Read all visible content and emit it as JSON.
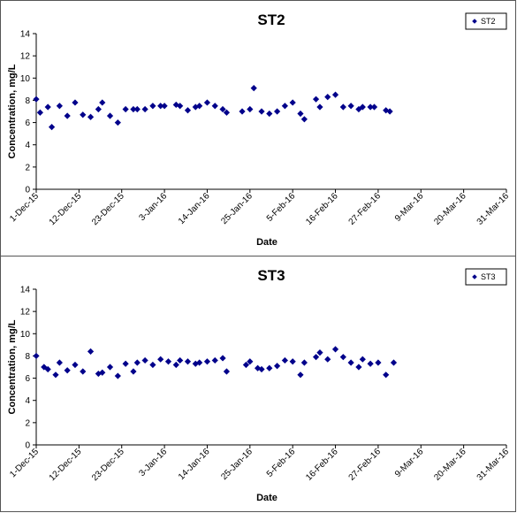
{
  "chart_data": [
    {
      "type": "scatter",
      "title": "ST2",
      "xlabel": "Date",
      "ylabel": "Concentration, mg/L",
      "ylim": [
        0,
        14
      ],
      "y_ticks": [
        0,
        2,
        4,
        6,
        8,
        10,
        12,
        14
      ],
      "xlim": [
        "2015-12-01",
        "2016-03-31"
      ],
      "x_tick_labels": [
        "1-Dec-15",
        "12-Dec-15",
        "23-Dec-15",
        "3-Jan-16",
        "14-Jan-16",
        "25-Jan-16",
        "5-Feb-16",
        "16-Feb-16",
        "27-Feb-16",
        "9-Mar-16",
        "20-Mar-16",
        "31-Mar-16"
      ],
      "x_tick_dates": [
        "2015-12-01",
        "2015-12-12",
        "2015-12-23",
        "2016-01-03",
        "2016-01-14",
        "2016-01-25",
        "2016-02-05",
        "2016-02-16",
        "2016-02-27",
        "2016-03-09",
        "2016-03-20",
        "2016-03-31"
      ],
      "grid": false,
      "legend_position": "top-right",
      "marker": "diamond",
      "color": "#00008B",
      "series": [
        {
          "name": "ST2",
          "points": [
            {
              "x": "2015-12-01",
              "y": 8.1
            },
            {
              "x": "2015-12-02",
              "y": 6.9
            },
            {
              "x": "2015-12-04",
              "y": 7.4
            },
            {
              "x": "2015-12-05",
              "y": 5.6
            },
            {
              "x": "2015-12-07",
              "y": 7.5
            },
            {
              "x": "2015-12-09",
              "y": 6.6
            },
            {
              "x": "2015-12-11",
              "y": 7.8
            },
            {
              "x": "2015-12-13",
              "y": 6.7
            },
            {
              "x": "2015-12-15",
              "y": 6.5
            },
            {
              "x": "2015-12-17",
              "y": 7.2
            },
            {
              "x": "2015-12-18",
              "y": 7.8
            },
            {
              "x": "2015-12-20",
              "y": 6.6
            },
            {
              "x": "2015-12-22",
              "y": 6.0
            },
            {
              "x": "2015-12-24",
              "y": 7.2
            },
            {
              "x": "2015-12-26",
              "y": 7.2
            },
            {
              "x": "2015-12-27",
              "y": 7.2
            },
            {
              "x": "2015-12-29",
              "y": 7.2
            },
            {
              "x": "2015-12-31",
              "y": 7.5
            },
            {
              "x": "2016-01-02",
              "y": 7.5
            },
            {
              "x": "2016-01-03",
              "y": 7.5
            },
            {
              "x": "2016-01-06",
              "y": 7.6
            },
            {
              "x": "2016-01-07",
              "y": 7.5
            },
            {
              "x": "2016-01-09",
              "y": 7.1
            },
            {
              "x": "2016-01-11",
              "y": 7.4
            },
            {
              "x": "2016-01-12",
              "y": 7.5
            },
            {
              "x": "2016-01-14",
              "y": 7.8
            },
            {
              "x": "2016-01-16",
              "y": 7.5
            },
            {
              "x": "2016-01-18",
              "y": 7.2
            },
            {
              "x": "2016-01-19",
              "y": 6.9
            },
            {
              "x": "2016-01-23",
              "y": 7.0
            },
            {
              "x": "2016-01-25",
              "y": 7.2
            },
            {
              "x": "2016-01-26",
              "y": 9.1
            },
            {
              "x": "2016-01-28",
              "y": 7.0
            },
            {
              "x": "2016-01-30",
              "y": 6.8
            },
            {
              "x": "2016-02-01",
              "y": 7.0
            },
            {
              "x": "2016-02-03",
              "y": 7.5
            },
            {
              "x": "2016-02-05",
              "y": 7.8
            },
            {
              "x": "2016-02-07",
              "y": 6.8
            },
            {
              "x": "2016-02-08",
              "y": 6.3
            },
            {
              "x": "2016-02-11",
              "y": 8.1
            },
            {
              "x": "2016-02-12",
              "y": 7.4
            },
            {
              "x": "2016-02-14",
              "y": 8.3
            },
            {
              "x": "2016-02-16",
              "y": 8.5
            },
            {
              "x": "2016-02-18",
              "y": 7.4
            },
            {
              "x": "2016-02-20",
              "y": 7.5
            },
            {
              "x": "2016-02-22",
              "y": 7.2
            },
            {
              "x": "2016-02-23",
              "y": 7.4
            },
            {
              "x": "2016-02-25",
              "y": 7.4
            },
            {
              "x": "2016-02-26",
              "y": 7.4
            },
            {
              "x": "2016-02-29",
              "y": 7.1
            },
            {
              "x": "2016-03-01",
              "y": 7.0
            }
          ]
        }
      ]
    },
    {
      "type": "scatter",
      "title": "ST3",
      "xlabel": "Date",
      "ylabel": "Concentration, mg/L",
      "ylim": [
        0,
        14
      ],
      "y_ticks": [
        0,
        2,
        4,
        6,
        8,
        10,
        12,
        14
      ],
      "xlim": [
        "2015-12-01",
        "2016-03-31"
      ],
      "x_tick_labels": [
        "1-Dec-15",
        "12-Dec-15",
        "23-Dec-15",
        "3-Jan-16",
        "14-Jan-16",
        "25-Jan-16",
        "5-Feb-16",
        "16-Feb-16",
        "27-Feb-16",
        "9-Mar-16",
        "20-Mar-16",
        "31-Mar-16"
      ],
      "x_tick_dates": [
        "2015-12-01",
        "2015-12-12",
        "2015-12-23",
        "2016-01-03",
        "2016-01-14",
        "2016-01-25",
        "2016-02-05",
        "2016-02-16",
        "2016-02-27",
        "2016-03-09",
        "2016-03-20",
        "2016-03-31"
      ],
      "grid": false,
      "legend_position": "top-right",
      "marker": "diamond",
      "color": "#00008B",
      "series": [
        {
          "name": "ST3",
          "points": [
            {
              "x": "2015-12-01",
              "y": 8.0
            },
            {
              "x": "2015-12-03",
              "y": 7.0
            },
            {
              "x": "2015-12-04",
              "y": 6.8
            },
            {
              "x": "2015-12-06",
              "y": 6.3
            },
            {
              "x": "2015-12-07",
              "y": 7.4
            },
            {
              "x": "2015-12-09",
              "y": 6.7
            },
            {
              "x": "2015-12-11",
              "y": 7.2
            },
            {
              "x": "2015-12-13",
              "y": 6.6
            },
            {
              "x": "2015-12-15",
              "y": 8.4
            },
            {
              "x": "2015-12-17",
              "y": 6.4
            },
            {
              "x": "2015-12-18",
              "y": 6.5
            },
            {
              "x": "2015-12-20",
              "y": 7.0
            },
            {
              "x": "2015-12-22",
              "y": 6.2
            },
            {
              "x": "2015-12-24",
              "y": 7.3
            },
            {
              "x": "2015-12-26",
              "y": 6.6
            },
            {
              "x": "2015-12-27",
              "y": 7.4
            },
            {
              "x": "2015-12-29",
              "y": 7.6
            },
            {
              "x": "2015-12-31",
              "y": 7.2
            },
            {
              "x": "2016-01-02",
              "y": 7.7
            },
            {
              "x": "2016-01-04",
              "y": 7.5
            },
            {
              "x": "2016-01-06",
              "y": 7.2
            },
            {
              "x": "2016-01-07",
              "y": 7.6
            },
            {
              "x": "2016-01-09",
              "y": 7.5
            },
            {
              "x": "2016-01-11",
              "y": 7.3
            },
            {
              "x": "2016-01-12",
              "y": 7.4
            },
            {
              "x": "2016-01-14",
              "y": 7.5
            },
            {
              "x": "2016-01-16",
              "y": 7.6
            },
            {
              "x": "2016-01-18",
              "y": 7.8
            },
            {
              "x": "2016-01-19",
              "y": 6.6
            },
            {
              "x": "2016-01-24",
              "y": 7.2
            },
            {
              "x": "2016-01-25",
              "y": 7.5
            },
            {
              "x": "2016-01-27",
              "y": 6.9
            },
            {
              "x": "2016-01-28",
              "y": 6.8
            },
            {
              "x": "2016-01-30",
              "y": 6.9
            },
            {
              "x": "2016-02-01",
              "y": 7.1
            },
            {
              "x": "2016-02-03",
              "y": 7.6
            },
            {
              "x": "2016-02-05",
              "y": 7.5
            },
            {
              "x": "2016-02-07",
              "y": 6.3
            },
            {
              "x": "2016-02-08",
              "y": 7.4
            },
            {
              "x": "2016-02-11",
              "y": 7.9
            },
            {
              "x": "2016-02-12",
              "y": 8.3
            },
            {
              "x": "2016-02-14",
              "y": 7.7
            },
            {
              "x": "2016-02-16",
              "y": 8.6
            },
            {
              "x": "2016-02-18",
              "y": 7.9
            },
            {
              "x": "2016-02-20",
              "y": 7.4
            },
            {
              "x": "2016-02-22",
              "y": 7.0
            },
            {
              "x": "2016-02-23",
              "y": 7.7
            },
            {
              "x": "2016-02-25",
              "y": 7.3
            },
            {
              "x": "2016-02-27",
              "y": 7.4
            },
            {
              "x": "2016-02-29",
              "y": 6.3
            },
            {
              "x": "2016-03-02",
              "y": 7.4
            }
          ]
        }
      ]
    }
  ]
}
